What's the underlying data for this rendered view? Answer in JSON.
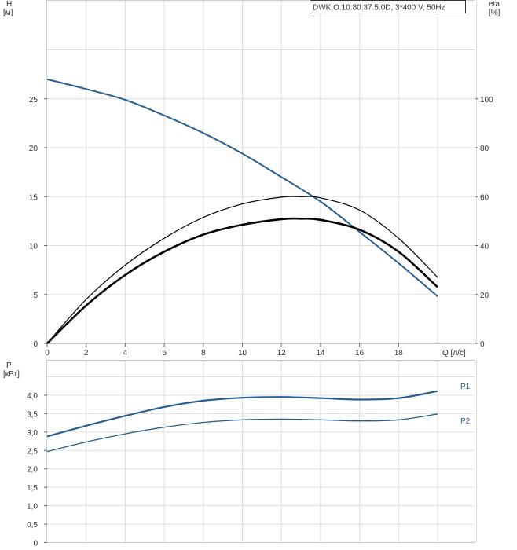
{
  "chart_data": [
    {
      "type": "line",
      "title": "DWK.O.10.80.37.5.0D, 3*400 V, 50Hz",
      "xlabel": "Q [л/с]",
      "ylabel_left": "H\n[м]",
      "ylabel_right": "eta\n[%]",
      "xlim": [
        0,
        22
      ],
      "ylim_left": [
        0,
        30
      ],
      "ylim_right": [
        0,
        120
      ],
      "x_ticks": [
        "0",
        "2",
        "4",
        "6",
        "8",
        "10",
        "12",
        "14",
        "16",
        "18"
      ],
      "y_ticks_left": [
        "0",
        "5",
        "10",
        "15",
        "20",
        "25"
      ],
      "y_ticks_right": [
        "0",
        "20",
        "40",
        "60",
        "80",
        "100"
      ],
      "grid": true,
      "series": [
        {
          "axis": "left",
          "color": "#2a5f8f",
          "x": [
            0,
            2,
            4,
            6,
            8,
            10,
            12,
            14,
            16,
            18,
            20
          ],
          "y": [
            27.0,
            26.0,
            24.9,
            23.3,
            21.5,
            19.4,
            17.0,
            14.5,
            11.4,
            8.2,
            4.8
          ]
        },
        {
          "axis": "right",
          "color": "#000000",
          "x": [
            0,
            2,
            4,
            6,
            8,
            10,
            12,
            13,
            14,
            16,
            18,
            20
          ],
          "y": [
            0,
            18,
            32,
            43,
            51.5,
            57,
            59.8,
            60,
            59.5,
            54.5,
            43,
            27
          ]
        },
        {
          "axis": "right",
          "color": "#000000",
          "x": [
            0,
            2,
            4,
            6,
            8,
            10,
            12,
            13,
            14,
            16,
            18,
            20
          ],
          "y": [
            0,
            15.5,
            28,
            37.5,
            44.5,
            48.5,
            50.8,
            51,
            50.5,
            46.5,
            37.5,
            23
          ]
        }
      ]
    },
    {
      "type": "line",
      "xlabel": "",
      "ylabel": "P\n[кВт]",
      "xlim": [
        0,
        22
      ],
      "ylim": [
        0,
        4.5
      ],
      "y_ticks": [
        "0",
        "0,5",
        "1,0",
        "1,5",
        "2,0",
        "2,5",
        "3,0",
        "3,5",
        "4,0"
      ],
      "grid": true,
      "series": [
        {
          "name": "P1",
          "color": "#2a5f8f",
          "x": [
            0,
            2,
            4,
            6,
            8,
            10,
            12,
            14,
            16,
            18,
            20
          ],
          "y": [
            2.88,
            3.17,
            3.44,
            3.68,
            3.85,
            3.93,
            3.95,
            3.92,
            3.88,
            3.92,
            4.11
          ]
        },
        {
          "name": "P2",
          "color": "#2a5f8f",
          "x": [
            0,
            2,
            4,
            6,
            8,
            10,
            12,
            14,
            16,
            18,
            20
          ],
          "y": [
            2.47,
            2.73,
            2.95,
            3.13,
            3.26,
            3.33,
            3.35,
            3.33,
            3.3,
            3.33,
            3.49
          ]
        }
      ]
    }
  ]
}
